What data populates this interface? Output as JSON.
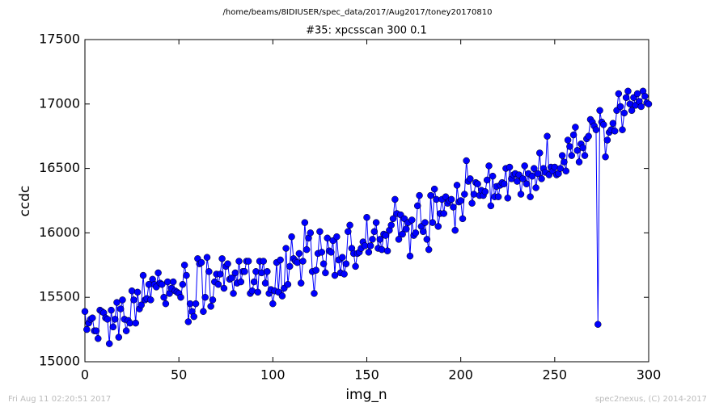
{
  "chart_data": {
    "type": "line",
    "header": "/home/beams/8IDIUSER/spec_data/2017/Aug2017/toney20170810",
    "title": "#35: xpcsscan 300 0.1",
    "xlabel": "img_n",
    "ylabel": "ccdc",
    "footer_left": "Fri Aug 11 02:20:51 2017",
    "footer_right": "spec2nexus, (C) 2014-2017",
    "xlim": [
      0,
      300
    ],
    "xticks": [
      0,
      50,
      100,
      150,
      200,
      250,
      300
    ],
    "ylim": [
      15000,
      17500
    ],
    "yticks": [
      15000,
      15500,
      16000,
      16500,
      17000,
      17500
    ],
    "x": [
      0,
      1,
      2,
      3,
      4,
      5,
      6,
      7,
      8,
      9,
      10,
      11,
      12,
      13,
      14,
      15,
      16,
      17,
      18,
      19,
      20,
      21,
      22,
      23,
      24,
      25,
      26,
      27,
      28,
      29,
      30,
      31,
      32,
      33,
      34,
      35,
      36,
      37,
      38,
      39,
      40,
      41,
      42,
      43,
      44,
      45,
      46,
      47,
      48,
      49,
      50,
      51,
      52,
      53,
      54,
      55,
      56,
      57,
      58,
      59,
      60,
      61,
      62,
      63,
      64,
      65,
      66,
      67,
      68,
      69,
      70,
      71,
      72,
      73,
      74,
      75,
      76,
      77,
      78,
      79,
      80,
      81,
      82,
      83,
      84,
      85,
      86,
      87,
      88,
      89,
      90,
      91,
      92,
      93,
      94,
      95,
      96,
      97,
      98,
      99,
      100,
      101,
      102,
      103,
      104,
      105,
      106,
      107,
      108,
      109,
      110,
      111,
      112,
      113,
      114,
      115,
      116,
      117,
      118,
      119,
      120,
      121,
      122,
      123,
      124,
      125,
      126,
      127,
      128,
      129,
      130,
      131,
      132,
      133,
      134,
      135,
      136,
      137,
      138,
      139,
      140,
      141,
      142,
      143,
      144,
      145,
      146,
      147,
      148,
      149,
      150,
      151,
      152,
      153,
      154,
      155,
      156,
      157,
      158,
      159,
      160,
      161,
      162,
      163,
      164,
      165,
      166,
      167,
      168,
      169,
      170,
      171,
      172,
      173,
      174,
      175,
      176,
      177,
      178,
      179,
      180,
      181,
      182,
      183,
      184,
      185,
      186,
      187,
      188,
      189,
      190,
      191,
      192,
      193,
      194,
      195,
      196,
      197,
      198,
      199,
      200,
      201,
      202,
      203,
      204,
      205,
      206,
      207,
      208,
      209,
      210,
      211,
      212,
      213,
      214,
      215,
      216,
      217,
      218,
      219,
      220,
      221,
      222,
      223,
      224,
      225,
      226,
      227,
      228,
      229,
      230,
      231,
      232,
      233,
      234,
      235,
      236,
      237,
      238,
      239,
      240,
      241,
      242,
      243,
      244,
      245,
      246,
      247,
      248,
      249,
      250,
      251,
      252,
      253,
      254,
      255,
      256,
      257,
      258,
      259,
      260,
      261,
      262,
      263,
      264,
      265,
      266,
      267,
      268,
      269,
      270,
      271,
      272,
      273,
      274,
      275,
      276,
      277,
      278,
      279,
      280,
      281,
      282,
      283,
      284,
      285,
      286,
      287,
      288,
      289,
      290,
      291,
      292,
      293,
      294,
      295,
      296,
      297,
      298,
      299,
      300
    ],
    "series": [
      {
        "color": "#0000ff",
        "values": [
          15390,
          15250,
          15300,
          15330,
          15340,
          15240,
          15240,
          15180,
          15400,
          15390,
          15380,
          15340,
          15330,
          15140,
          15400,
          15270,
          15330,
          15460,
          15190,
          15410,
          15480,
          15330,
          15240,
          15320,
          15300,
          15550,
          15480,
          15300,
          15540,
          15410,
          15440,
          15670,
          15480,
          15490,
          15600,
          15480,
          15640,
          15600,
          15580,
          15690,
          15610,
          15600,
          15500,
          15450,
          15620,
          15530,
          15570,
          15620,
          15550,
          15540,
          15530,
          15500,
          15600,
          15750,
          15670,
          15310,
          15450,
          15390,
          15350,
          15450,
          15800,
          15760,
          15770,
          15390,
          15500,
          15810,
          15700,
          15430,
          15480,
          15620,
          15680,
          15600,
          15680,
          15800,
          15570,
          15740,
          15760,
          15640,
          15650,
          15530,
          15690,
          15610,
          15780,
          15620,
          15700,
          15700,
          15780,
          15780,
          15530,
          15550,
          15620,
          15700,
          15540,
          15780,
          15690,
          15780,
          15610,
          15700,
          15530,
          15560,
          15450,
          15550,
          15770,
          15540,
          15790,
          15510,
          15570,
          15880,
          15600,
          15740,
          15970,
          15800,
          15780,
          15770,
          15840,
          15610,
          15780,
          16080,
          15870,
          15960,
          16000,
          15700,
          15530,
          15710,
          15840,
          16010,
          15850,
          15760,
          15690,
          15960,
          15860,
          15850,
          15940,
          15670,
          15970,
          15790,
          15690,
          15810,
          15680,
          15760,
          16010,
          16060,
          15880,
          15840,
          15740,
          15840,
          15850,
          15880,
          15930,
          15900,
          16120,
          15850,
          15900,
          15950,
          16010,
          16080,
          15880,
          15950,
          15870,
          15990,
          15980,
          15860,
          16020,
          16060,
          16110,
          16260,
          16150,
          15950,
          16140,
          15990,
          16110,
          16030,
          16080,
          15820,
          16100,
          15980,
          16000,
          16210,
          16290,
          16050,
          16010,
          16080,
          15950,
          15870,
          16290,
          16080,
          16340,
          16260,
          16050,
          16150,
          16260,
          16150,
          16280,
          16230,
          16250,
          16260,
          16200,
          16020,
          16370,
          16240,
          16250,
          16110,
          16300,
          16560,
          16400,
          16420,
          16230,
          16300,
          16390,
          16380,
          16290,
          16330,
          16290,
          16320,
          16410,
          16520,
          16210,
          16440,
          16280,
          16360,
          16280,
          16370,
          16390,
          16380,
          16500,
          16270,
          16510,
          16420,
          16450,
          16460,
          16400,
          16450,
          16300,
          16420,
          16520,
          16380,
          16460,
          16280,
          16440,
          16500,
          16350,
          16460,
          16620,
          16420,
          16500,
          16470,
          16750,
          16450,
          16510,
          16480,
          16510,
          16450,
          16460,
          16500,
          16600,
          16550,
          16480,
          16720,
          16670,
          16600,
          16760,
          16820,
          16640,
          16550,
          16690,
          16660,
          16600,
          16730,
          16750,
          16880,
          16860,
          16830,
          16800,
          15290,
          16950,
          16860,
          16840,
          16590,
          16720,
          16780,
          16800,
          16850,
          16790,
          16950,
          17080,
          16980,
          16800,
          16930,
          17050,
          17100,
          17000,
          16950,
          17050,
          16990,
          17080,
          17020,
          16980,
          17100,
          17060,
          17010,
          17000
        ]
      }
    ]
  }
}
